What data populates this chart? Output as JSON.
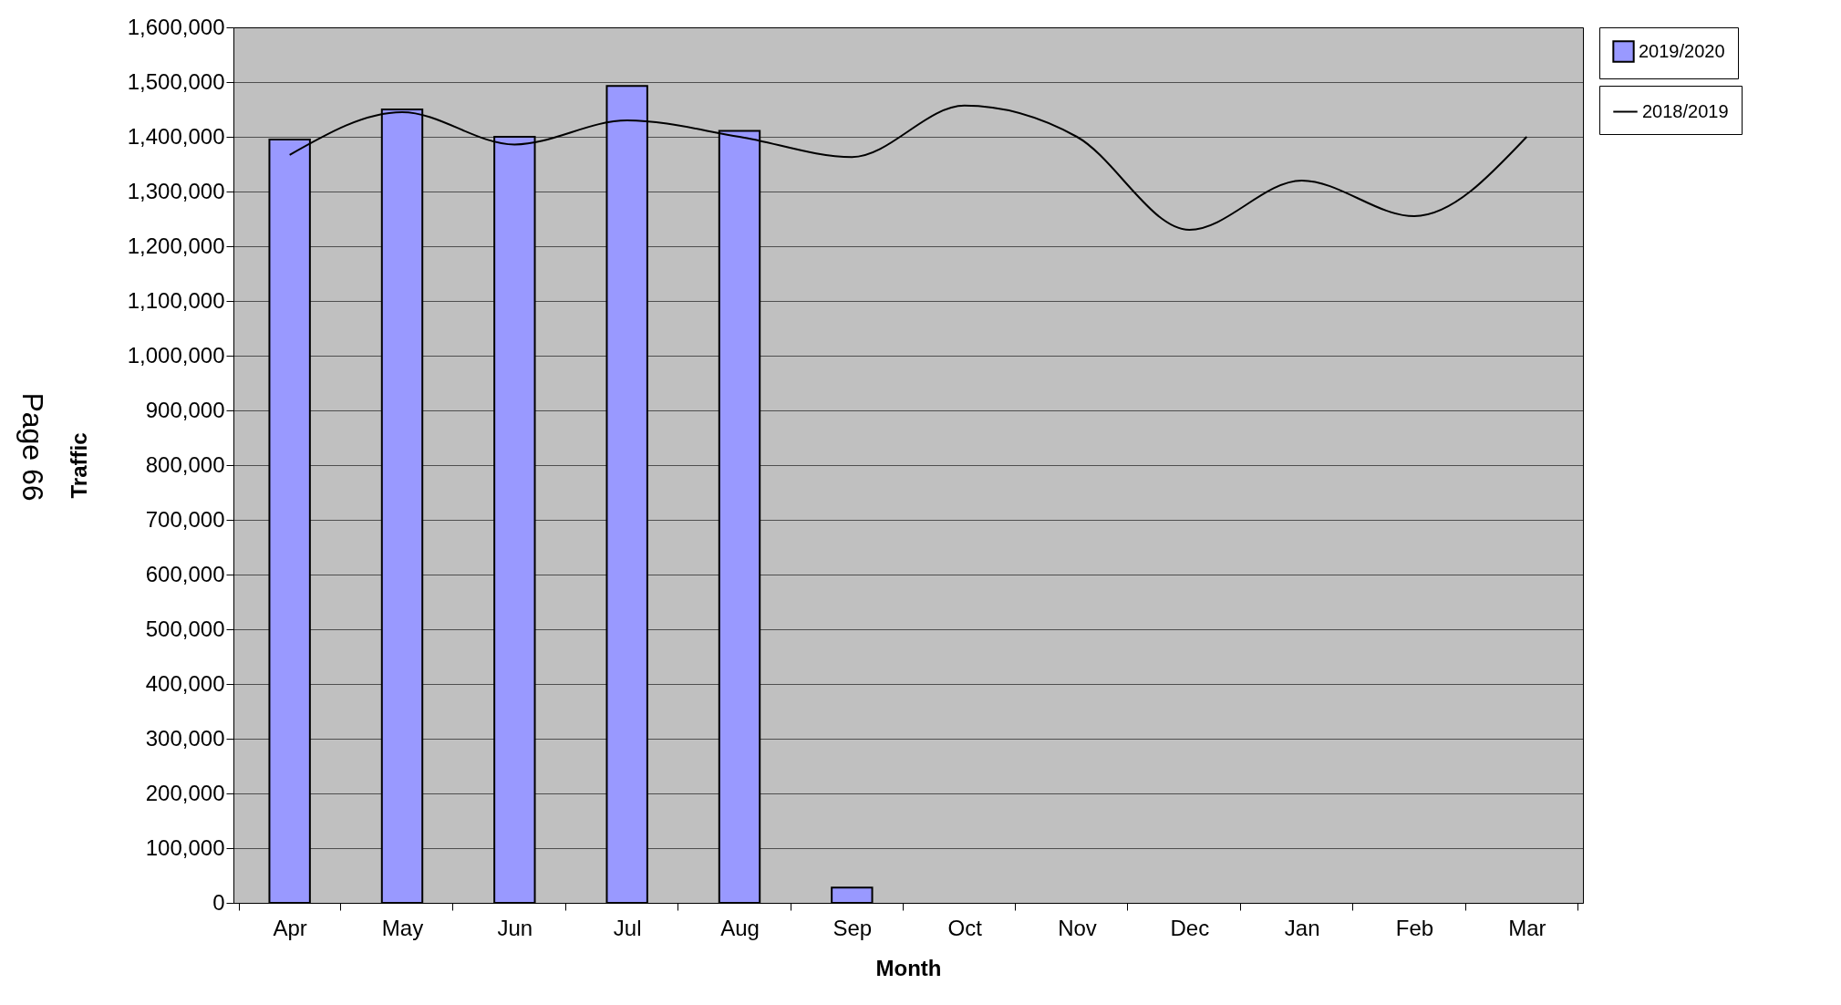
{
  "chart_data": {
    "type": "bar",
    "xlabel": "Month",
    "ylabel": "Traffic",
    "categories": [
      "Apr",
      "May",
      "Jun",
      "Jul",
      "Aug",
      "Sep",
      "Oct",
      "Nov",
      "Dec",
      "Jan",
      "Feb",
      "Mar"
    ],
    "series": [
      {
        "name": "2019/2020",
        "color": "#9999ff",
        "values": [
          1395000,
          1450000,
          1400000,
          1493000,
          1411000,
          28000,
          null,
          null,
          null,
          null,
          null,
          null
        ]
      },
      {
        "name": "2018/2019",
        "type": "line",
        "color": "#000000",
        "values": [
          1367000,
          1445000,
          1386000,
          1430000,
          1400000,
          1363000,
          1457000,
          1400000,
          1230000,
          1320000,
          1255000,
          1400000
        ]
      }
    ],
    "ylim": [
      0,
      1600000
    ],
    "yticks": [
      0,
      {
        "value": 100000,
        "label": "100,000"
      },
      {
        "value": 200000,
        "label": "200,000"
      },
      {
        "value": 300000,
        "label": "300,000"
      },
      {
        "value": 400000,
        "label": "400,000"
      },
      {
        "value": 500000,
        "label": "500,000"
      },
      {
        "value": 600000,
        "label": "600,000"
      },
      {
        "value": 700000,
        "label": "700,000"
      },
      {
        "value": 800000,
        "label": "800,000"
      },
      {
        "value": 900000,
        "label": "900,000"
      },
      {
        "value": 1000000,
        "label": "1,000,000"
      },
      {
        "value": 1100000,
        "label": "1,100,000"
      },
      {
        "value": 1200000,
        "label": "1,200,000"
      },
      {
        "value": 1300000,
        "label": "1,300,000"
      },
      {
        "value": 1400000,
        "label": "1,400,000"
      },
      {
        "value": 1500000,
        "label": "1,500,000"
      },
      {
        "value": 1600000,
        "label": "1,600,000"
      }
    ],
    "grid": "y",
    "legend": "right",
    "annotations": [
      "Page 66"
    ]
  }
}
